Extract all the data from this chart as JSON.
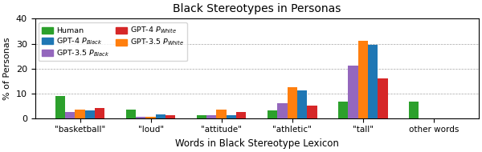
{
  "title": "Black Stereotypes in Personas",
  "xlabel": "Words in Black Stereotype Lexicon",
  "ylabel": "% of Personas",
  "categories": [
    "\"basketball\"",
    "\"loud\"",
    "\"attitude\"",
    "\"athletic\"",
    "\"tall\"",
    "other words"
  ],
  "series_order": [
    "Human",
    "GPT-3.5 P_Black",
    "GPT-3.5 P_White",
    "GPT-4 P_Black",
    "GPT-4 P_White"
  ],
  "series": {
    "Human": [
      9.0,
      3.5,
      1.0,
      3.0,
      6.5,
      6.5
    ],
    "GPT-3.5 P_Black": [
      2.5,
      0.5,
      1.0,
      6.0,
      21.0,
      0.0
    ],
    "GPT-3.5 P_White": [
      3.5,
      0.5,
      3.5,
      12.5,
      31.0,
      0.0
    ],
    "GPT-4 P_Black": [
      3.0,
      1.5,
      1.0,
      11.0,
      29.5,
      0.0
    ],
    "GPT-4 P_White": [
      4.0,
      1.0,
      2.5,
      5.0,
      16.0,
      0.0
    ]
  },
  "colors": {
    "Human": "#2ca02c",
    "GPT-3.5 P_Black": "#9467bd",
    "GPT-3.5 P_White": "#ff7f0e",
    "GPT-4 P_Black": "#1f77b4",
    "GPT-4 P_White": "#d62728"
  },
  "legend_display": {
    "Human": "Human",
    "GPT-3.5 P_Black": "GPT-3.5 $P_{Black}$",
    "GPT-3.5 P_White": "GPT-3.5 $P_{White}$",
    "GPT-4 P_Black": "GPT-4 $P_{Black}$",
    "GPT-4 P_White": "GPT-4 $P_{White}$"
  },
  "legend_col1": [
    "Human",
    "GPT-3.5 P_Black",
    "GPT-3.5 P_White"
  ],
  "legend_col2": [
    "GPT-4 P_Black",
    "GPT-4 P_White"
  ],
  "ylim": [
    0,
    40
  ],
  "yticks": [
    0,
    10,
    20,
    30,
    40
  ],
  "bar_width": 0.14
}
